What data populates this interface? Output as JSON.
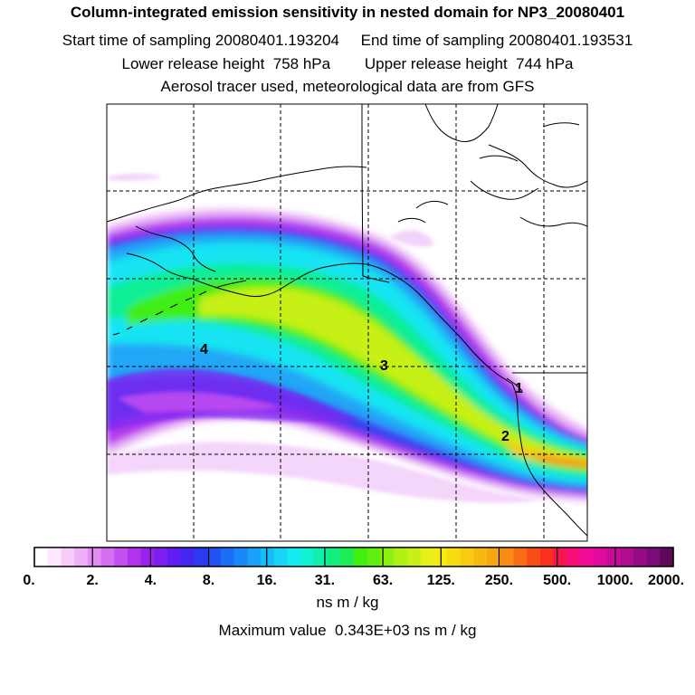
{
  "titles": {
    "main": "Column-integrated emission sensitivity in nested domain for NP3_20080401",
    "sampling": "Start time of sampling 20080401.193204     End time of sampling 20080401.193531",
    "release": "Lower release height  758 hPa        Upper release height  744 hPa",
    "tracer": "Aerosol tracer used, meteorological data are from GFS"
  },
  "map": {
    "region": "North Pacific / Alaska / western North America",
    "grid": "dashed lat/lon lines",
    "markers": [
      {
        "label": "1",
        "color": "#000000"
      },
      {
        "label": "2",
        "color": "#000000"
      },
      {
        "label": "3",
        "color": "#000000"
      },
      {
        "label": "4",
        "color": "#000000"
      }
    ]
  },
  "colorbar": {
    "tick_labels": [
      "0.",
      "2.",
      "4.",
      "8.",
      "16.",
      "31.",
      "63.",
      "125.",
      "250.",
      "500.",
      "1000.",
      "2000."
    ],
    "colors": [
      "#ffffff",
      "#fde6ff",
      "#f7ccfb",
      "#eeb0f7",
      "#e28df5",
      "#d46ff3",
      "#c550f0",
      "#b332ee",
      "#9a22ee",
      "#7f1ef2",
      "#611cf2",
      "#4326ef",
      "#2a3af0",
      "#2053f2",
      "#1b6ef4",
      "#1a88f7",
      "#1aa1f8",
      "#17bdf8",
      "#16d5f5",
      "#14eaf0",
      "#10f0d2",
      "#10f0aa",
      "#10ef80",
      "#1ded55",
      "#40ee10",
      "#5fee12",
      "#8cf012",
      "#b0f014",
      "#c9f016",
      "#e6f018",
      "#f7ec12",
      "#f8dc10",
      "#f8ca10",
      "#f8b812",
      "#f8a512",
      "#f88b14",
      "#f86c16",
      "#f84c18",
      "#f8301c",
      "#f81450",
      "#f80e7a",
      "#f00c98",
      "#e00a9e",
      "#c80c98",
      "#b00c92",
      "#960c88",
      "#7c0a78",
      "#5e0858"
    ],
    "units": "ns m / kg"
  },
  "maximum": "Maximum value  0.343E+03 ns m / kg"
}
